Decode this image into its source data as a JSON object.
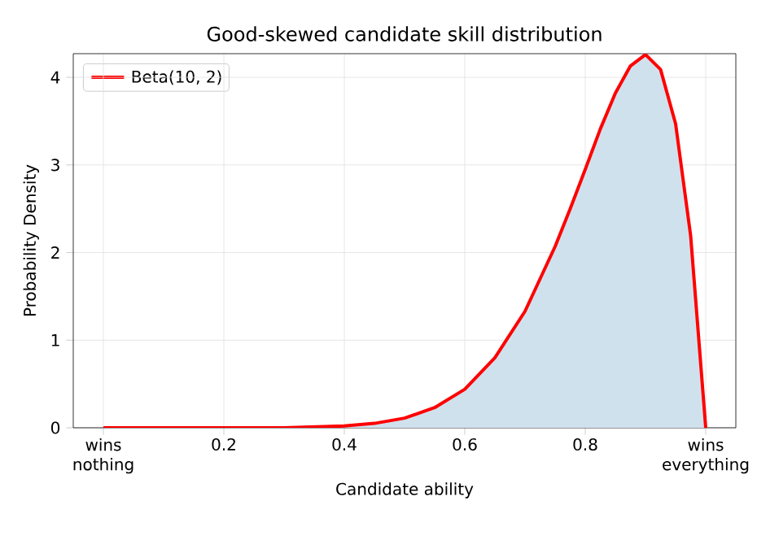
{
  "chart_data": {
    "type": "area",
    "title": "Good-skewed candidate skill distribution",
    "xlabel": "Candidate ability",
    "ylabel": "Probability Density",
    "x": [
      0,
      0.1,
      0.2,
      0.3,
      0.4,
      0.45,
      0.5,
      0.55,
      0.6,
      0.65,
      0.7,
      0.75,
      0.775,
      0.8,
      0.825,
      0.85,
      0.875,
      0.9,
      0.925,
      0.95,
      0.975,
      1
    ],
    "series": [
      {
        "name": "Beta(10, 2)",
        "color": "#ff0000",
        "values": [
          0,
          0,
          0,
          0,
          0.02,
          0.05,
          0.11,
          0.23,
          0.44,
          0.8,
          1.33,
          2.07,
          2.5,
          2.95,
          3.41,
          3.82,
          4.13,
          4.26,
          4.09,
          3.47,
          2.19,
          0
        ]
      }
    ],
    "xlim": [
      -0.05,
      1.05
    ],
    "ylim": [
      0,
      4.27
    ],
    "xticks": [
      {
        "value": 0,
        "label": "wins nothing"
      },
      0.2,
      0.4,
      0.6,
      0.8,
      {
        "value": 1,
        "label": "wins everything"
      }
    ],
    "yticks": [
      0,
      1,
      2,
      3,
      4
    ],
    "grid": true,
    "legend": "top left"
  }
}
